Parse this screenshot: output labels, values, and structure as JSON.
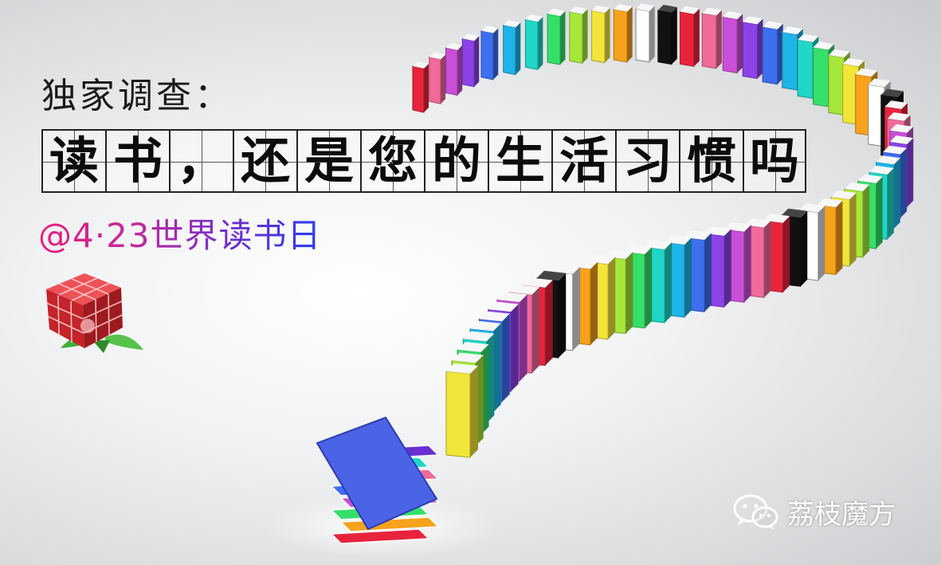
{
  "heading": {
    "kicker": "独家调查：",
    "title_chars": [
      "读",
      "书",
      "，",
      "还",
      "是",
      "您",
      "的",
      "生",
      "活",
      "习",
      "惯",
      "吗"
    ],
    "subtitle": "@4·23世界读书日"
  },
  "brand": {
    "name": "荔枝魔方",
    "icon": "wechat-icon"
  },
  "logo": {
    "icon": "red-cube-rose-logo"
  },
  "illustration": {
    "subject": "question-mark-made-of-books"
  },
  "colors": {
    "subtitle_gradient": [
      "#e81e7f",
      "#6a2fd3",
      "#2a40f0"
    ],
    "logo_red": "#d42a2f",
    "book_palette": [
      "#e8243c",
      "#f06a9a",
      "#c84fd6",
      "#8d42e8",
      "#3d6ff0",
      "#1fb4e8",
      "#20d6c8",
      "#35e06a",
      "#a6e83a",
      "#f2e53a",
      "#f7a21b",
      "#ffffff",
      "#111111"
    ]
  }
}
